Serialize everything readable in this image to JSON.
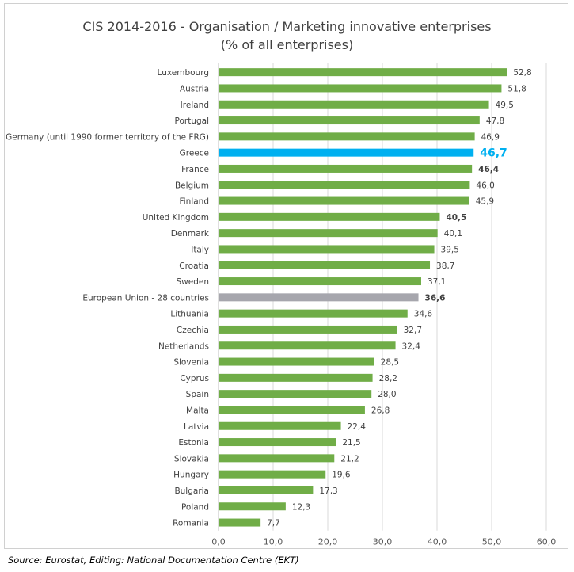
{
  "chart_data": {
    "type": "bar",
    "orientation": "horizontal",
    "title": [
      "CIS 2014-2016 - Organisation / Marketing innovative enterprises",
      "(% of all enterprises)"
    ],
    "xlim": [
      0,
      60
    ],
    "xticks": [
      "0,0",
      "10,0",
      "20,0",
      "30,0",
      "40,0",
      "50,0",
      "60,0"
    ],
    "grid": "vertical",
    "legend": "none",
    "colors": {
      "default": "#70ad47",
      "highlight": "#00b0f0",
      "eu": "#a6a6ad",
      "highlight_label": "#00b0f0"
    },
    "categories": [
      "Luxembourg",
      "Austria",
      "Ireland",
      "Portugal",
      "Germany (until 1990 former territory of the FRG)",
      "Greece",
      "France",
      "Belgium",
      "Finland",
      "United Kingdom",
      "Denmark",
      "Italy",
      "Croatia",
      "Sweden",
      "European Union - 28 countries",
      "Lithuania",
      "Czechia",
      "Netherlands",
      "Slovenia",
      "Cyprus",
      "Spain",
      "Malta",
      "Latvia",
      "Estonia",
      "Slovakia",
      "Hungary",
      "Bulgaria",
      "Poland",
      "Romania"
    ],
    "values": [
      52.8,
      51.8,
      49.5,
      47.8,
      46.9,
      46.7,
      46.4,
      46.0,
      45.9,
      40.5,
      40.1,
      39.5,
      38.7,
      37.1,
      36.6,
      34.6,
      32.7,
      32.4,
      28.5,
      28.2,
      28.0,
      26.8,
      22.4,
      21.5,
      21.2,
      19.6,
      17.3,
      12.3,
      7.7
    ],
    "value_labels": [
      "52,8",
      "51,8",
      "49,5",
      "47,8",
      "46,9",
      "46,7",
      "46,4",
      "46,0",
      "45,9",
      "40,5",
      "40,1",
      "39,5",
      "38,7",
      "37,1",
      "36,6",
      "34,6",
      "32,7",
      "32,4",
      "28,5",
      "28,2",
      "28,0",
      "26,8",
      "22,4",
      "21,5",
      "21,2",
      "19,6",
      "17,3",
      "12,3",
      "7,7"
    ],
    "highlighted": [
      "Greece"
    ],
    "eu_average": [
      "European Union - 28 countries"
    ],
    "bold_labels": [
      "France",
      "United Kingdom",
      "European Union - 28 countries"
    ]
  },
  "source": "Source: Eurostat, Editing: National Documentation Centre (EKT)"
}
